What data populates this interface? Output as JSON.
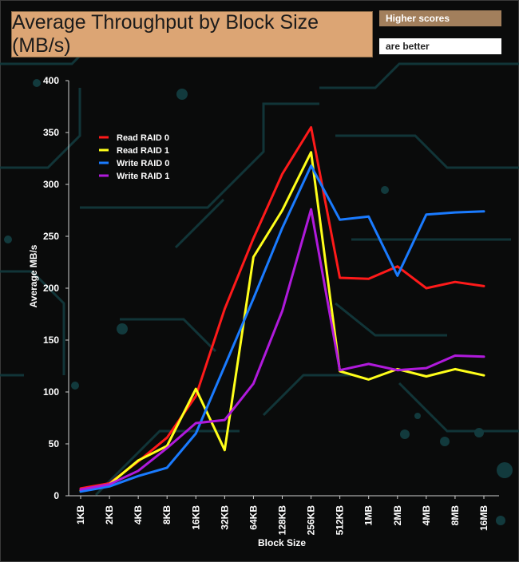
{
  "header": {
    "title": "Average Throughput by Block Size (MB/s)",
    "note_line1": "Higher scores",
    "note_line2": "are better"
  },
  "chart_data": {
    "type": "line",
    "title": "Average Throughput by Block Size (MB/s)",
    "xlabel": "Block Size",
    "ylabel": "Average MB/s",
    "ylim": [
      0,
      400
    ],
    "yticks": [
      0,
      50,
      100,
      150,
      200,
      250,
      300,
      350,
      400
    ],
    "grid": false,
    "legend_position": "top-left",
    "categories": [
      "1KB",
      "2KB",
      "4KB",
      "8KB",
      "16KB",
      "32KB",
      "64KB",
      "128KB",
      "256KB",
      "512KB",
      "1MB",
      "2MB",
      "4MB",
      "8MB",
      "16MB"
    ],
    "series": [
      {
        "name": "Read RAID 0",
        "color": "#ff1a1a",
        "values": [
          7,
          12,
          33,
          56,
          96,
          180,
          248,
          310,
          355,
          210,
          209,
          221,
          200,
          206,
          202
        ]
      },
      {
        "name": "Read RAID 1",
        "color": "#ffff1a",
        "values": [
          5,
          11,
          34,
          48,
          103,
          44,
          230,
          275,
          331,
          120,
          112,
          122,
          115,
          122,
          116
        ]
      },
      {
        "name": "Write RAID 0",
        "color": "#1a7bff",
        "values": [
          4,
          9,
          19,
          27,
          60,
          125,
          190,
          258,
          318,
          266,
          269,
          212,
          271,
          273,
          274
        ]
      },
      {
        "name": "Write RAID 1",
        "color": "#b01adc",
        "values": [
          6,
          11,
          24,
          46,
          70,
          73,
          108,
          178,
          276,
          121,
          127,
          121,
          123,
          135,
          134
        ]
      }
    ]
  }
}
